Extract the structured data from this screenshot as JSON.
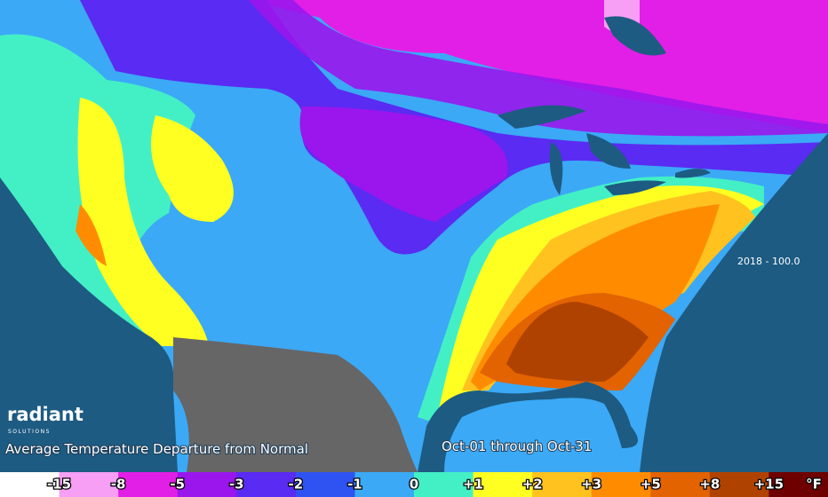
{
  "logo": {
    "name": "radiant",
    "tagline": "SOLUTIONS"
  },
  "title": "Average Temperature Departure from Normal",
  "period": "Oct-01 through Oct-31",
  "stamp": "2018 - 100.0",
  "legend": {
    "colors": [
      "#ffffff",
      "#f79ef5",
      "#e21fe6",
      "#9a16ec",
      "#5a2bf2",
      "#2f52f2",
      "#3ba9f6",
      "#43f0c6",
      "#ffff22",
      "#ffc21e",
      "#ff8c00",
      "#e26300",
      "#b04200",
      "#6e0000"
    ],
    "labels": [
      "-15",
      "-8",
      "-5",
      "-3",
      "-2",
      "-1",
      "0",
      "+1",
      "+2",
      "+3",
      "+5",
      "+8",
      "+15"
    ],
    "unit": "°F"
  }
}
